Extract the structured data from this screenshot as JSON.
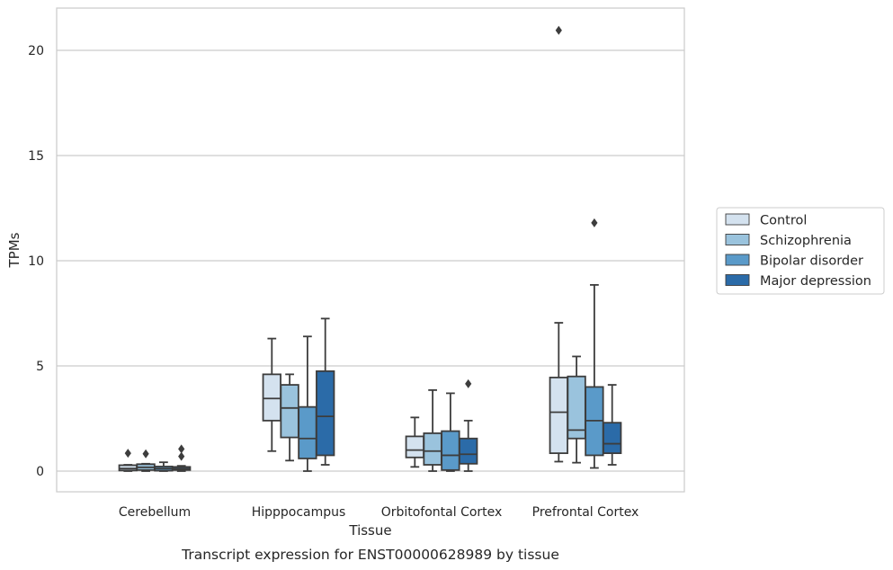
{
  "chart_data": {
    "type": "box",
    "title": "",
    "caption": "Transcript expression for ENST00000628989 by tissue",
    "xlabel": "Tissue",
    "ylabel": "TPMs",
    "ylim": [
      -1,
      22
    ],
    "yticks": [
      0,
      5,
      10,
      15,
      20
    ],
    "grid": "horizontal",
    "legend_position": "right",
    "categories": [
      "Cerebellum",
      "Hipppocampus",
      "Orbitofontal Cortex",
      "Prefrontal Cortex"
    ],
    "series": [
      {
        "name": "Control",
        "color": "#d4e2ef",
        "boxes": [
          {
            "whislo": 0.0,
            "q1": 0.03,
            "med": 0.12,
            "q3": 0.28,
            "whishi": 0.3,
            "fliers": [
              0.85
            ]
          },
          {
            "whislo": 0.95,
            "q1": 2.4,
            "med": 3.45,
            "q3": 4.6,
            "whishi": 6.3,
            "fliers": []
          },
          {
            "whislo": 0.2,
            "q1": 0.65,
            "med": 1.0,
            "q3": 1.65,
            "whishi": 2.55,
            "fliers": []
          },
          {
            "whislo": 0.45,
            "q1": 0.85,
            "med": 2.8,
            "q3": 4.45,
            "whishi": 7.05,
            "fliers": [
              20.95
            ]
          }
        ]
      },
      {
        "name": "Schizophrenia",
        "color": "#9ac3dd",
        "boxes": [
          {
            "whislo": 0.0,
            "q1": 0.05,
            "med": 0.18,
            "q3": 0.33,
            "whishi": 0.35,
            "fliers": [
              0.82
            ]
          },
          {
            "whislo": 0.5,
            "q1": 1.6,
            "med": 3.0,
            "q3": 4.1,
            "whishi": 4.6,
            "fliers": []
          },
          {
            "whislo": 0.0,
            "q1": 0.3,
            "med": 0.95,
            "q3": 1.8,
            "whishi": 3.85,
            "fliers": []
          },
          {
            "whislo": 0.4,
            "q1": 1.55,
            "med": 1.95,
            "q3": 4.5,
            "whishi": 5.45,
            "fliers": []
          }
        ]
      },
      {
        "name": "Bipolar disorder",
        "color": "#5a9ac9",
        "boxes": [
          {
            "whislo": 0.0,
            "q1": 0.02,
            "med": 0.12,
            "q3": 0.22,
            "whishi": 0.42,
            "fliers": []
          },
          {
            "whislo": 0.0,
            "q1": 0.6,
            "med": 1.55,
            "q3": 3.05,
            "whishi": 6.4,
            "fliers": []
          },
          {
            "whislo": 0.0,
            "q1": 0.05,
            "med": 0.75,
            "q3": 1.9,
            "whishi": 3.7,
            "fliers": []
          },
          {
            "whislo": 0.15,
            "q1": 0.75,
            "med": 2.4,
            "q3": 4.0,
            "whishi": 8.85,
            "fliers": [
              11.8
            ]
          }
        ]
      },
      {
        "name": "Major depression",
        "color": "#2b6ba8",
        "boxes": [
          {
            "whislo": 0.0,
            "q1": 0.05,
            "med": 0.12,
            "q3": 0.2,
            "whishi": 0.25,
            "fliers": [
              0.7,
              1.05
            ]
          },
          {
            "whislo": 0.3,
            "q1": 0.75,
            "med": 2.6,
            "q3": 4.75,
            "whishi": 7.25,
            "fliers": []
          },
          {
            "whislo": 0.0,
            "q1": 0.35,
            "med": 0.8,
            "q3": 1.55,
            "whishi": 2.4,
            "fliers": [
              4.15
            ]
          },
          {
            "whislo": 0.3,
            "q1": 0.85,
            "med": 1.3,
            "q3": 2.3,
            "whishi": 4.1,
            "fliers": []
          }
        ]
      }
    ]
  }
}
